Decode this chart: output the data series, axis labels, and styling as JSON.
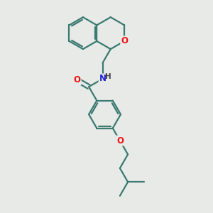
{
  "background_color": "#e8eae8",
  "bond_color": "#3a7a70",
  "atom_colors": {
    "O": "#ee1111",
    "N": "#2222cc",
    "H_color": "#444444"
  },
  "line_width": 1.6,
  "dbo": 0.06,
  "figsize": [
    3.0,
    3.0
  ],
  "dpi": 100
}
